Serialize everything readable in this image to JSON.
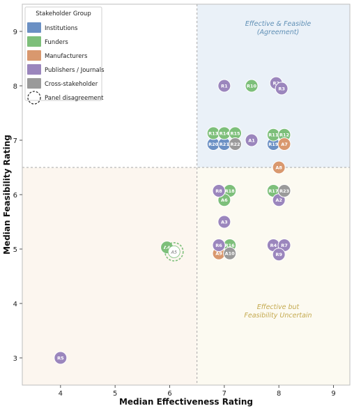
{
  "chart_data": {
    "type": "scatter",
    "title": "",
    "xlabel": "Median Effectiveness Rating",
    "ylabel": "Median Feasibility Rating",
    "xlim": [
      3.3,
      9.3
    ],
    "ylim": [
      2.5,
      9.5
    ],
    "xticks": [
      "4",
      "5",
      "6",
      "7",
      "8",
      "9"
    ],
    "yticks": [
      "3",
      "4",
      "5",
      "6",
      "7",
      "8",
      "9"
    ],
    "thresholds": {
      "x": 6.5,
      "y": 6.5
    },
    "quadrant_labels": [
      {
        "text_lines": [
          "Effective & Feasible",
          "(Agreement)"
        ],
        "color": "#5f8fb5"
      },
      {
        "text_lines": [
          "Effective but",
          "Feasibility Uncertain"
        ],
        "color": "#c4a94e"
      }
    ],
    "legend": {
      "title": "Stakeholder Group",
      "placement": "top-left",
      "entries": [
        {
          "label": "Institutions",
          "color": "#6b90c4"
        },
        {
          "label": "Funders",
          "color": "#7dbf7a"
        },
        {
          "label": "Manufacturers",
          "color": "#d9986e"
        },
        {
          "label": "Publishers / Journals",
          "color": "#9b86bd"
        },
        {
          "label": "Cross-stakeholder",
          "color": "#9a9a9a"
        },
        {
          "label": "Panel disagreement",
          "style": "dashed-circle"
        }
      ]
    },
    "series": [
      {
        "group": "Institutions",
        "color": "#6b90c4",
        "points": [
          {
            "label": "R20",
            "x": 6.8,
            "y": 6.93
          },
          {
            "label": "R21",
            "x": 7.0,
            "y": 6.93
          },
          {
            "label": "R19",
            "x": 7.9,
            "y": 6.93
          }
        ]
      },
      {
        "group": "Funders",
        "color": "#7dbf7a",
        "points": [
          {
            "label": "R10",
            "x": 7.5,
            "y": 8.0
          },
          {
            "label": "R13",
            "x": 6.8,
            "y": 7.13
          },
          {
            "label": "R14",
            "x": 7.0,
            "y": 7.13
          },
          {
            "label": "R15",
            "x": 7.2,
            "y": 7.13
          },
          {
            "label": "R11",
            "x": 7.9,
            "y": 7.1
          },
          {
            "label": "R12",
            "x": 8.1,
            "y": 7.1
          },
          {
            "label": "R18",
            "x": 7.1,
            "y": 6.07
          },
          {
            "label": "A6",
            "x": 7.0,
            "y": 5.9
          },
          {
            "label": "R17",
            "x": 7.9,
            "y": 6.07
          },
          {
            "label": "R16",
            "x": 7.1,
            "y": 5.07
          },
          {
            "label": "A4",
            "x": 5.95,
            "y": 5.03
          }
        ]
      },
      {
        "group": "Manufacturers",
        "color": "#d9986e",
        "points": [
          {
            "label": "A7",
            "x": 8.1,
            "y": 6.93
          },
          {
            "label": "A8",
            "x": 8.0,
            "y": 6.5
          },
          {
            "label": "A9",
            "x": 6.9,
            "y": 4.92
          }
        ]
      },
      {
        "group": "Publishers / Journals",
        "color": "#9b86bd",
        "points": [
          {
            "label": "R1",
            "x": 7.0,
            "y": 8.0
          },
          {
            "label": "R2",
            "x": 7.95,
            "y": 8.05
          },
          {
            "label": "R3",
            "x": 8.05,
            "y": 7.95
          },
          {
            "label": "A1",
            "x": 7.5,
            "y": 7.0
          },
          {
            "label": "R8",
            "x": 6.9,
            "y": 6.07
          },
          {
            "label": "A2",
            "x": 8.0,
            "y": 5.9
          },
          {
            "label": "A3",
            "x": 7.0,
            "y": 5.5
          },
          {
            "label": "R6",
            "x": 6.9,
            "y": 5.07
          },
          {
            "label": "R4",
            "x": 7.9,
            "y": 5.07
          },
          {
            "label": "R7",
            "x": 8.1,
            "y": 5.07
          },
          {
            "label": "R9",
            "x": 8.0,
            "y": 4.9
          },
          {
            "label": "R5",
            "x": 4.0,
            "y": 3.0
          }
        ]
      },
      {
        "group": "Cross-stakeholder",
        "color": "#9a9a9a",
        "points": [
          {
            "label": "R22",
            "x": 7.2,
            "y": 6.93
          },
          {
            "label": "R23",
            "x": 8.1,
            "y": 6.07
          },
          {
            "label": "A10",
            "x": 7.1,
            "y": 4.92
          }
        ]
      }
    ],
    "disagreement_points": [
      {
        "label": "A5",
        "x": 6.08,
        "y": 4.95,
        "color": "#7dbf7a"
      }
    ],
    "grid": false
  }
}
